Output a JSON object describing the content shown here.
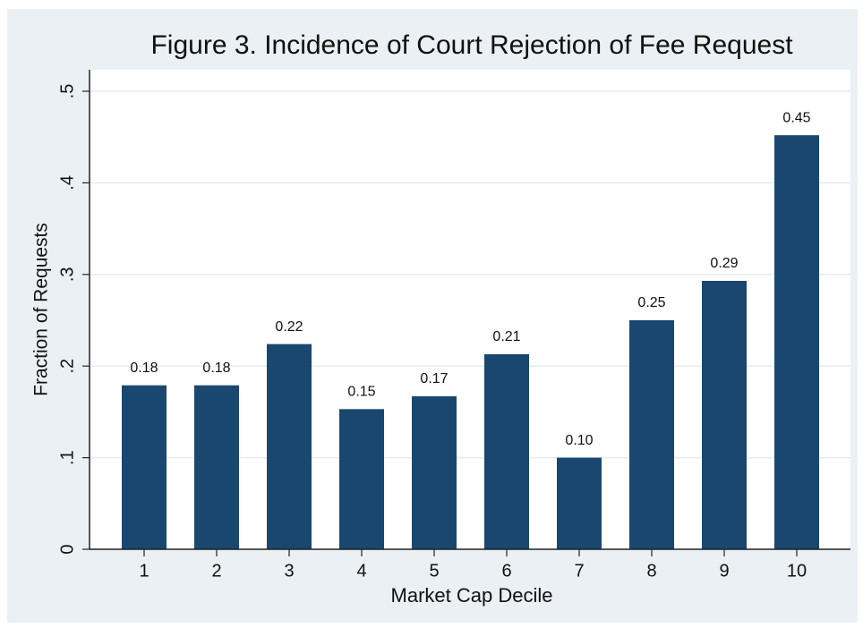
{
  "chart_data": {
    "type": "bar",
    "title": "Figure 3. Incidence of Court Rejection of Fee Request",
    "x_label": "Market Cap Decile",
    "y_label": "Fraction of Requests",
    "categories": [
      1,
      2,
      3,
      4,
      5,
      6,
      7,
      8,
      9,
      10
    ],
    "values": [
      0.179,
      0.179,
      0.224,
      0.153,
      0.167,
      0.213,
      0.1,
      0.25,
      0.293,
      0.452
    ],
    "value_labels": [
      "0.18",
      "0.18",
      "0.22",
      "0.15",
      "0.17",
      "0.21",
      "0.10",
      "0.25",
      "0.29",
      "0.45"
    ],
    "color": "#1a476f",
    "ylim": [
      0,
      0.5
    ],
    "yticks": [
      0,
      {
        "value": 0.1,
        "label": ".1"
      },
      {
        "value": 0.2,
        "label": ".2"
      },
      {
        "value": 0.3,
        "label": ".3"
      },
      {
        "value": 0.4,
        "label": ".4"
      },
      {
        "value": 0.5,
        "label": ".5"
      }
    ],
    "grid": true
  }
}
